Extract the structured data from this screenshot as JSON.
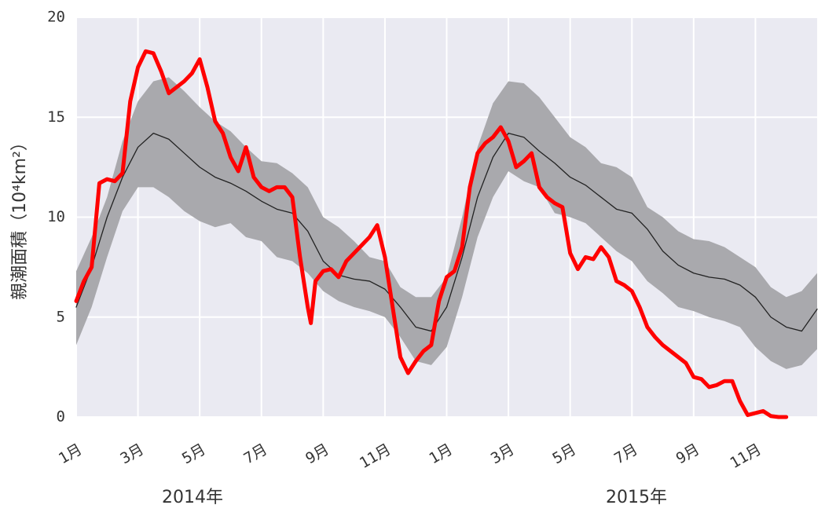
{
  "chart_data": {
    "type": "line",
    "ylabel": "親潮面積（10⁴km²）",
    "annotations": [
      "2014年",
      "2015年"
    ],
    "xlim": [
      0,
      24
    ],
    "ylim": [
      0,
      20
    ],
    "yticks": [
      0,
      5,
      10,
      15,
      20
    ],
    "xticks": [
      {
        "value": 0,
        "label": "1月"
      },
      {
        "value": 2,
        "label": "3月"
      },
      {
        "value": 4,
        "label": "5月"
      },
      {
        "value": 6,
        "label": "7月"
      },
      {
        "value": 8,
        "label": "9月"
      },
      {
        "value": 10,
        "label": "11月"
      },
      {
        "value": 12,
        "label": "1月"
      },
      {
        "value": 14,
        "label": "3月"
      },
      {
        "value": 16,
        "label": "5月"
      },
      {
        "value": 18,
        "label": "7月"
      },
      {
        "value": 20,
        "label": "9月"
      },
      {
        "value": 22,
        "label": "11月"
      }
    ],
    "grid": true,
    "band": {
      "color": "#a9a9ad",
      "x": [
        0,
        0.5,
        1,
        1.5,
        2,
        2.5,
        3,
        3.5,
        4,
        4.5,
        5,
        5.5,
        6,
        6.5,
        7,
        7.5,
        8,
        8.5,
        9,
        9.5,
        10,
        10.5,
        11,
        11.5,
        12,
        12.5,
        13,
        13.5,
        14,
        14.5,
        15,
        15.5,
        16,
        16.5,
        17,
        17.5,
        18,
        18.5,
        19,
        19.5,
        20,
        20.5,
        21,
        21.5,
        22,
        22.5,
        23,
        23.5,
        24
      ],
      "upper": [
        7.3,
        9.0,
        11.0,
        13.8,
        15.8,
        16.8,
        17.0,
        16.3,
        15.5,
        14.8,
        14.3,
        13.5,
        12.8,
        12.7,
        12.2,
        11.5,
        10.0,
        9.5,
        8.8,
        8.0,
        7.8,
        6.5,
        6.0,
        6.0,
        7.0,
        10.0,
        13.5,
        15.7,
        16.8,
        16.7,
        16.0,
        15.0,
        14.0,
        13.5,
        12.7,
        12.5,
        12.0,
        10.5,
        10.0,
        9.3,
        8.9,
        8.8,
        8.5,
        8.0,
        7.5,
        6.5,
        6.0,
        6.3,
        7.2
      ],
      "lower": [
        3.6,
        5.5,
        8.0,
        10.3,
        11.5,
        11.5,
        11.0,
        10.3,
        9.8,
        9.5,
        9.7,
        9.0,
        8.8,
        8.0,
        7.8,
        7.2,
        6.3,
        5.8,
        5.5,
        5.3,
        5.0,
        4.0,
        2.8,
        2.6,
        3.5,
        6.0,
        9.0,
        11.0,
        12.3,
        11.8,
        11.5,
        10.2,
        10.0,
        9.7,
        9.0,
        8.3,
        7.8,
        6.8,
        6.2,
        5.5,
        5.3,
        5.0,
        4.8,
        4.5,
        3.5,
        2.8,
        2.4,
        2.6,
        3.4
      ]
    },
    "series": [
      {
        "color": "#222222",
        "width": 1.3,
        "x": [
          0,
          0.5,
          1,
          1.5,
          2,
          2.5,
          3,
          3.5,
          4,
          4.5,
          5,
          5.5,
          6,
          6.5,
          7,
          7.5,
          8,
          8.5,
          9,
          9.5,
          10,
          10.5,
          11,
          11.5,
          12,
          12.5,
          13,
          13.5,
          14,
          14.5,
          15,
          15.5,
          16,
          16.5,
          17,
          17.5,
          18,
          18.5,
          19,
          19.5,
          20,
          20.5,
          21,
          21.5,
          22,
          22.5,
          23,
          23.5,
          24
        ],
        "values": [
          5.5,
          7.5,
          10.0,
          12.0,
          13.5,
          14.2,
          13.9,
          13.2,
          12.5,
          12.0,
          11.7,
          11.3,
          10.8,
          10.4,
          10.2,
          9.3,
          7.8,
          7.1,
          6.9,
          6.8,
          6.4,
          5.5,
          4.5,
          4.3,
          5.5,
          8.0,
          11.0,
          13.0,
          14.2,
          14.0,
          13.3,
          12.7,
          12.0,
          11.6,
          11.0,
          10.4,
          10.2,
          9.4,
          8.3,
          7.6,
          7.2,
          7.0,
          6.9,
          6.6,
          6.0,
          5.0,
          4.5,
          4.3,
          5.4
        ]
      },
      {
        "color": "#ff0000",
        "width": 5,
        "x": [
          0,
          0.25,
          0.5,
          0.75,
          1,
          1.25,
          1.5,
          1.75,
          2,
          2.25,
          2.5,
          2.75,
          3,
          3.25,
          3.5,
          3.75,
          4,
          4.25,
          4.5,
          4.75,
          5,
          5.25,
          5.5,
          5.75,
          6,
          6.25,
          6.5,
          6.75,
          7,
          7.25,
          7.5,
          7.6,
          7.75,
          8,
          8.25,
          8.5,
          8.75,
          9,
          9.25,
          9.5,
          9.75,
          10,
          10.25,
          10.5,
          10.75,
          11,
          11.25,
          11.5,
          11.75,
          12,
          12.25,
          12.5,
          12.75,
          13,
          13.25,
          13.5,
          13.75,
          14,
          14.25,
          14.5,
          14.75,
          15,
          15.25,
          15.5,
          15.75,
          16,
          16.25,
          16.5,
          16.75,
          17,
          17.25,
          17.5,
          17.75,
          18,
          18.25,
          18.5,
          18.75,
          19,
          19.25,
          19.5,
          19.75,
          20,
          20.25,
          20.5,
          20.75,
          21,
          21.25,
          21.5,
          21.75,
          22,
          22.25,
          22.5,
          22.75,
          23
        ],
        "values": [
          5.8,
          6.8,
          7.5,
          11.7,
          11.9,
          11.8,
          12.2,
          15.8,
          17.5,
          18.3,
          18.2,
          17.3,
          16.2,
          16.5,
          16.8,
          17.2,
          17.9,
          16.5,
          14.8,
          14.2,
          13.0,
          12.3,
          13.5,
          12.0,
          11.5,
          11.3,
          11.5,
          11.5,
          11.0,
          8.0,
          5.5,
          4.7,
          6.8,
          7.3,
          7.4,
          7.0,
          7.8,
          8.2,
          8.6,
          9.0,
          9.6,
          8.0,
          5.5,
          3.0,
          2.2,
          2.8,
          3.3,
          3.6,
          5.8,
          7.0,
          7.3,
          8.5,
          11.5,
          13.2,
          13.7,
          14.0,
          14.5,
          13.8,
          12.5,
          12.8,
          13.2,
          11.5,
          11.0,
          10.7,
          10.5,
          8.2,
          7.4,
          8.0,
          7.9,
          8.5,
          8.0,
          6.8,
          6.6,
          6.3,
          5.5,
          4.5,
          4.0,
          3.6,
          3.3,
          3.0,
          2.7,
          2.0,
          1.9,
          1.5,
          1.6,
          1.8,
          1.8,
          0.8,
          0.1,
          0.2,
          0.3,
          0.05,
          0,
          0
        ]
      }
    ]
  }
}
